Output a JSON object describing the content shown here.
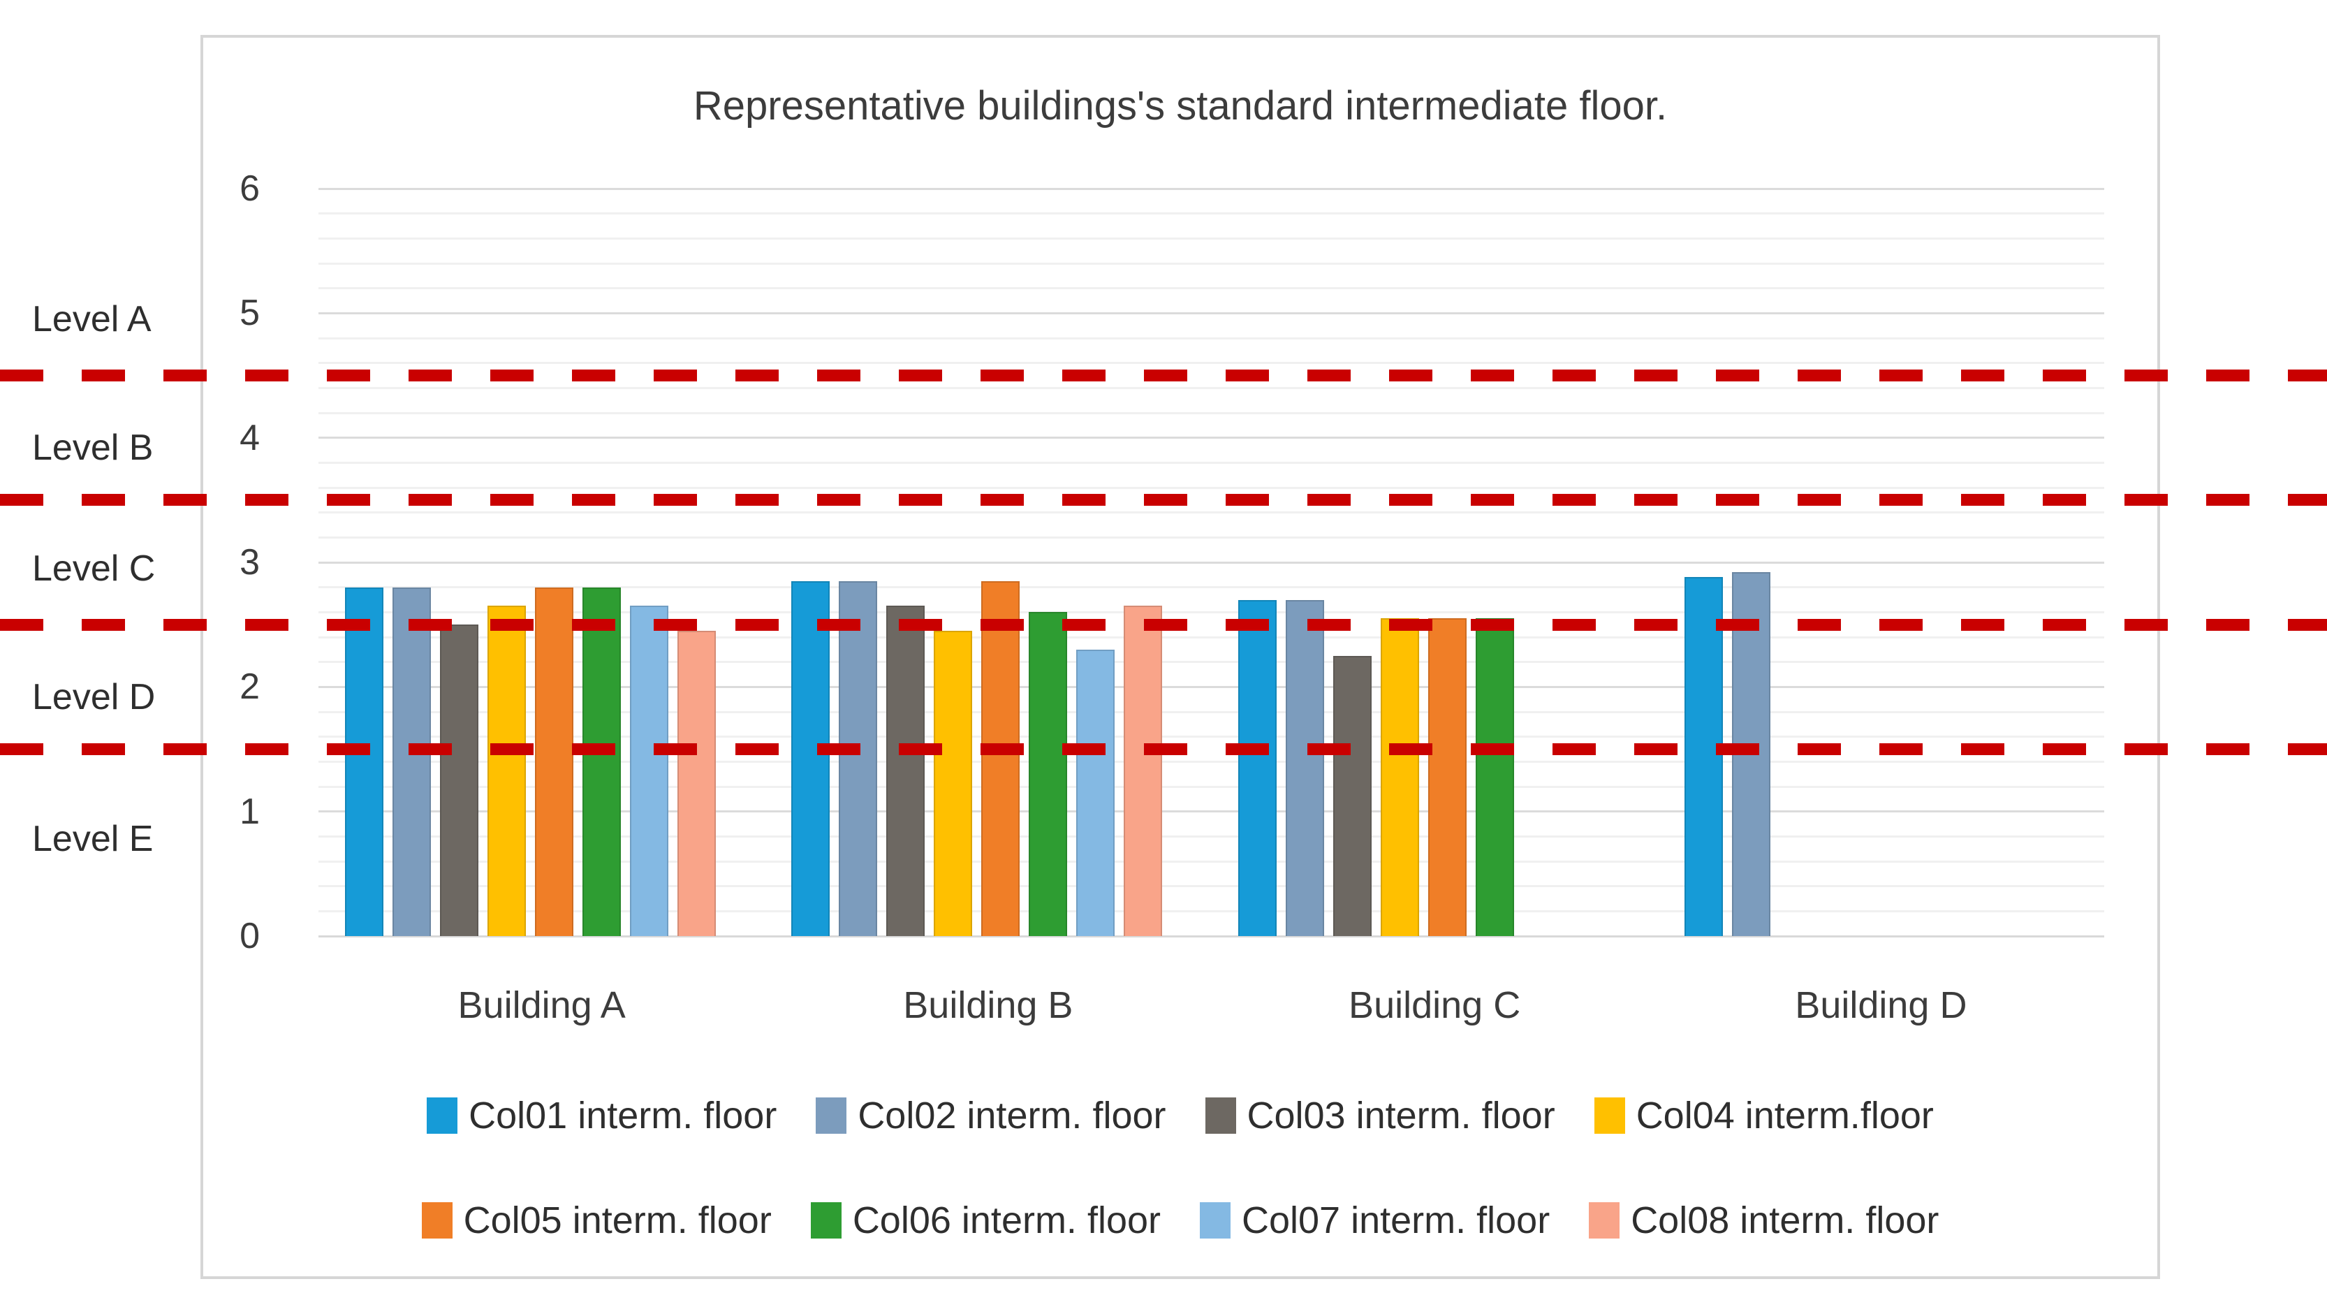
{
  "chart_data": {
    "type": "bar",
    "title": "Representative buildings's standard intermediate floor.",
    "categories": [
      "Building A",
      "Building B",
      "Building C",
      "Building D"
    ],
    "series": [
      {
        "name": "Col01 interm. floor",
        "color": "#169BD7",
        "values": [
          2.8,
          2.85,
          2.7,
          2.88
        ]
      },
      {
        "name": "Col02 interm. floor",
        "color": "#7C9CBD",
        "values": [
          2.8,
          2.85,
          2.7,
          2.92
        ]
      },
      {
        "name": "Col03 interm. floor",
        "color": "#6D6862",
        "values": [
          2.5,
          2.65,
          2.25,
          null
        ]
      },
      {
        "name": "Col04 interm.floor",
        "color": "#FFC000",
        "values": [
          2.65,
          2.45,
          2.55,
          null
        ]
      },
      {
        "name": "Col05 interm. floor",
        "color": "#F07E27",
        "values": [
          2.8,
          2.85,
          2.55,
          null
        ]
      },
      {
        "name": "Col06 interm. floor",
        "color": "#2E9D32",
        "values": [
          2.8,
          2.6,
          2.55,
          null
        ]
      },
      {
        "name": "Col07 interm. floor",
        "color": "#84B9E3",
        "values": [
          2.65,
          2.3,
          null,
          null
        ]
      },
      {
        "name": "Col08 interm. floor",
        "color": "#F9A489",
        "values": [
          2.45,
          2.65,
          null,
          null
        ]
      }
    ],
    "y_axis": {
      "min": 0,
      "max": 6,
      "tick_labels": [
        "0",
        "1",
        "2",
        "3",
        "4",
        "5",
        "6"
      ],
      "minor_grid_step": 0.2
    },
    "threshold_lines": {
      "style": "dashed",
      "color": "#C90000",
      "values": [
        4.5,
        3.5,
        2.5,
        1.5
      ]
    },
    "level_labels": [
      {
        "label": "Level A",
        "at_value": 4.95
      },
      {
        "label": "Level B",
        "at_value": 3.92
      },
      {
        "label": "Level C",
        "at_value": 2.95
      },
      {
        "label": "Level D",
        "at_value": 1.92
      },
      {
        "label": "Level E",
        "at_value": 0.78
      }
    ],
    "legend_position": "bottom",
    "legend_items_per_row": 4,
    "grid": true
  },
  "colors": {
    "threshold_red": "#C90000",
    "grid_major": "#DBDBDB",
    "grid_minor": "#F0F0F0",
    "axis_base": "#D9D9D9",
    "chart_border": "#D6D6D6",
    "text": "#3C3C3C"
  }
}
